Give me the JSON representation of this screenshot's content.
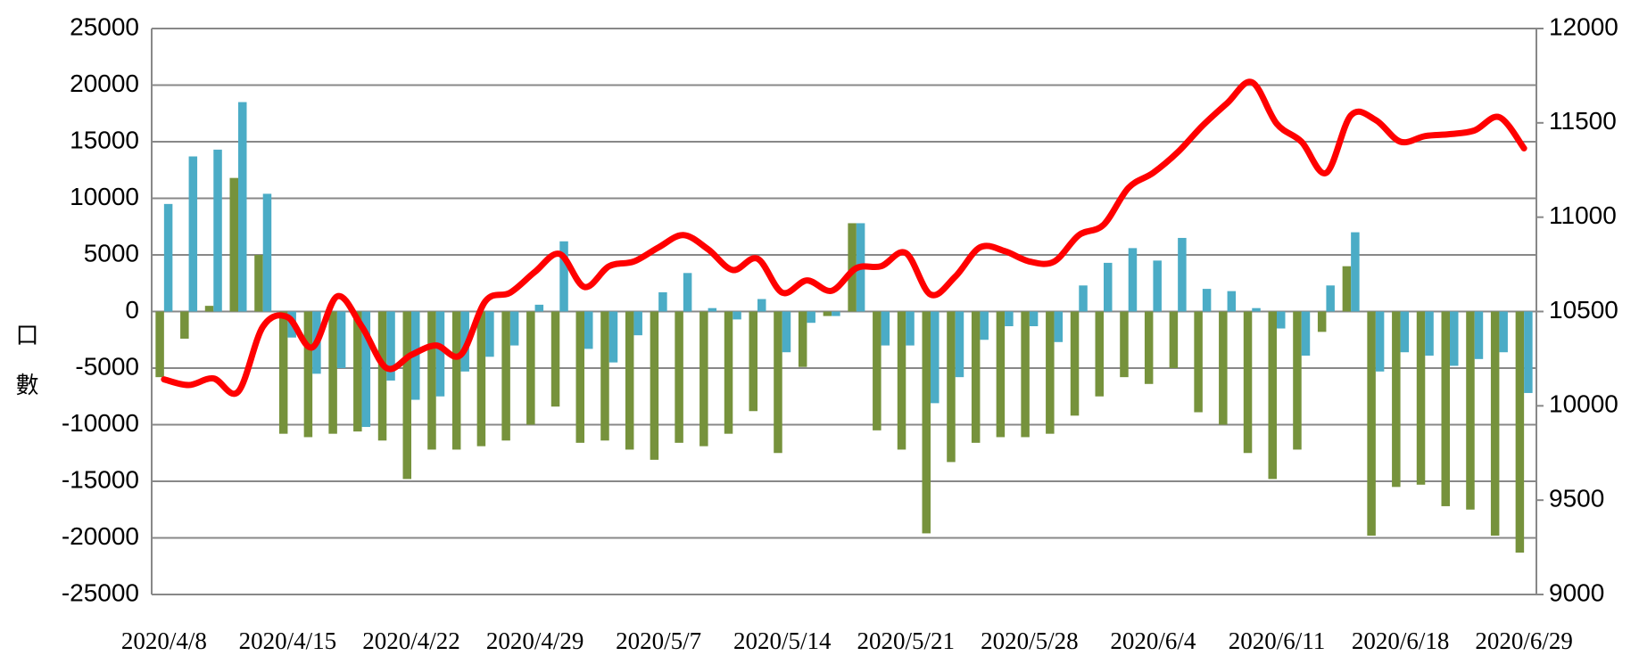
{
  "chart_data": {
    "type": "bar-line",
    "y_label": "口數",
    "categories": [
      "2020/4/8",
      null,
      null,
      null,
      null,
      "2020/4/15",
      null,
      null,
      null,
      null,
      "2020/4/22",
      null,
      null,
      null,
      null,
      "2020/4/29",
      null,
      null,
      null,
      null,
      "2020/5/7",
      null,
      null,
      null,
      null,
      "2020/5/14",
      null,
      null,
      null,
      null,
      "2020/5/21",
      null,
      null,
      null,
      null,
      "2020/5/28",
      null,
      null,
      null,
      null,
      "2020/6/4",
      null,
      null,
      null,
      null,
      "2020/6/11",
      null,
      null,
      null,
      null,
      "2020/6/18",
      null,
      null,
      null,
      null,
      "2020/6/29"
    ],
    "series": [
      {
        "type": "bar",
        "color": "#76923c",
        "values": [
          -5800,
          -2400,
          500,
          11800,
          5000,
          -10800,
          -11100,
          -10800,
          -10600,
          -11400,
          -14800,
          -12200,
          -12200,
          -11900,
          -11400,
          -10000,
          -8400,
          -11600,
          -11400,
          -12200,
          -13100,
          -11600,
          -11900,
          -10800,
          -8800,
          -12500,
          -4900,
          -400,
          7800,
          -10500,
          -12200,
          -19600,
          -13300,
          -11600,
          -11100,
          -11100,
          -10800,
          -9200,
          -7500,
          -5800,
          -6400,
          -5000,
          -8900,
          -10000,
          -12500,
          -14800,
          -12200,
          -1800,
          4000,
          -19800,
          -15500,
          -15300,
          -17200,
          -17500,
          -19800,
          -21300
        ]
      },
      {
        "type": "bar",
        "color": "#4bacc6",
        "values": [
          9500,
          13700,
          14300,
          18500,
          10400,
          -2300,
          -5500,
          -5000,
          -10200,
          -6100,
          -7800,
          -7500,
          -5300,
          -4000,
          -3000,
          600,
          6200,
          -3300,
          -4500,
          -2100,
          1700,
          3400,
          300,
          -700,
          1100,
          -3600,
          -1000,
          -400,
          7800,
          -3000,
          -3000,
          -8100,
          -5800,
          -2500,
          -1300,
          -1300,
          -2700,
          2300,
          4300,
          5600,
          4500,
          6500,
          2000,
          1800,
          300,
          -1500,
          -3900,
          2300,
          7000,
          -5300,
          -3600,
          -3900,
          -4800,
          -4200,
          -3600,
          -7200
        ]
      },
      {
        "type": "line",
        "axis": "y2",
        "color": "#ff0000",
        "values": [
          10140,
          10110,
          10145,
          10075,
          10420,
          10470,
          10310,
          10580,
          10420,
          10200,
          10270,
          10320,
          10270,
          10555,
          10600,
          10710,
          10805,
          10630,
          10740,
          10765,
          10840,
          10905,
          10830,
          10720,
          10780,
          10600,
          10665,
          10610,
          10730,
          10740,
          10810,
          10590,
          10685,
          10840,
          10820,
          10765,
          10765,
          10905,
          10960,
          11155,
          11235,
          11345,
          11485,
          11605,
          11715,
          11495,
          11400,
          11235,
          11540,
          11515,
          11400,
          11430,
          11440,
          11460,
          11530,
          11365
        ]
      }
    ],
    "ylim": [
      -25000,
      25000
    ],
    "yticks": [
      -25000,
      -20000,
      -15000,
      -10000,
      -5000,
      0,
      5000,
      10000,
      15000,
      20000,
      25000
    ],
    "y2lim": [
      9000,
      12000
    ],
    "y2ticks": [
      9000,
      9500,
      10000,
      10500,
      11000,
      11500,
      12000
    ],
    "grid": true
  }
}
